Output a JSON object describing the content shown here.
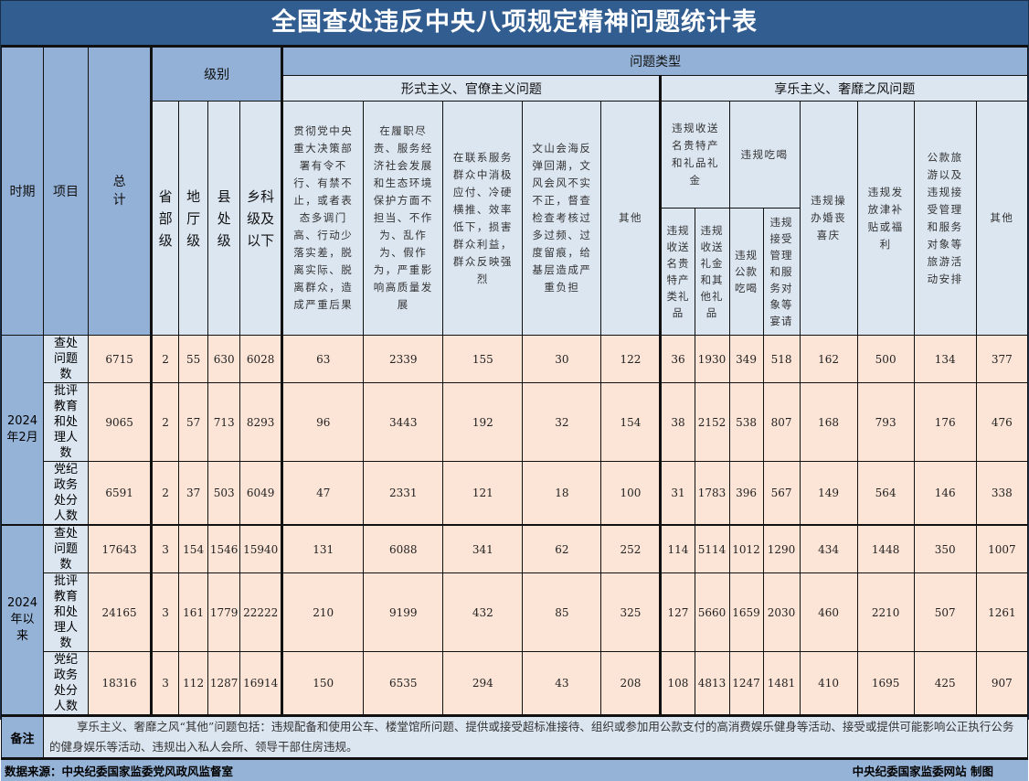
{
  "title": "全国查处违反中央八项规定精神问题统计表",
  "header": {
    "period": "时期",
    "item": "项目",
    "total": "总计",
    "level_group": "级别",
    "levels": [
      "省部级",
      "地厅级",
      "县处级",
      "乡科级及以下"
    ],
    "problem_type": "问题类型",
    "formalism_group": "形式主义、官僚主义问题",
    "formalism_cols": [
      "贯彻党中央重大决策部署有令不行、有禁不止，或者表态多调门高、行动少落实差，脱离实际、脱离群众，造成严重后果",
      "在履职尽责、服务经济社会发展和生态环境保护方面不担当、不作为、乱作为、假作为，严重影响高质量发展",
      "在联系服务群众中消极应付、冷硬横推、效率低下，损害群众利益，群众反映强烈",
      "文山会海反弹回潮，文风会风不实不正，督查检查考核过多过频、过度留痕，给基层造成严重负担",
      "其他"
    ],
    "hedonism_group": "享乐主义、奢靡之风问题",
    "gifts_group": "违规收送名贵特产和礼品礼金",
    "gifts_cols": [
      "违规收送名贵特产类礼品",
      "违规收送礼金和其他礼品"
    ],
    "dining_group": "违规吃喝",
    "dining_cols": [
      "违规公款吃喝",
      "违规接受管理和服务对象等宴请"
    ],
    "hedonism_cols": [
      "违规操办婚丧喜庆",
      "违规发放津补贴或福利",
      "公款旅游以及违规接受管理和服务对象等旅游活动安排",
      "其他"
    ]
  },
  "periods": [
    {
      "label": "2024年2月",
      "rows": [
        {
          "item": "查处问题数",
          "values": [
            "6715",
            "2",
            "55",
            "630",
            "6028",
            "63",
            "2339",
            "155",
            "30",
            "122",
            "36",
            "1930",
            "349",
            "518",
            "162",
            "500",
            "134",
            "377"
          ]
        },
        {
          "item": "批评教育和处理人数",
          "values": [
            "9065",
            "2",
            "57",
            "713",
            "8293",
            "96",
            "3443",
            "192",
            "32",
            "154",
            "38",
            "2152",
            "538",
            "807",
            "168",
            "793",
            "176",
            "476"
          ]
        },
        {
          "item": "党纪政务处分人数",
          "values": [
            "6591",
            "2",
            "37",
            "503",
            "6049",
            "47",
            "2331",
            "121",
            "18",
            "100",
            "31",
            "1783",
            "396",
            "567",
            "149",
            "564",
            "146",
            "338"
          ]
        }
      ]
    },
    {
      "label": "2024年以来",
      "rows": [
        {
          "item": "查处问题数",
          "values": [
            "17643",
            "3",
            "154",
            "1546",
            "15940",
            "131",
            "6088",
            "341",
            "62",
            "252",
            "114",
            "5114",
            "1012",
            "1290",
            "434",
            "1448",
            "350",
            "1007"
          ]
        },
        {
          "item": "批评教育和处理人数",
          "values": [
            "24165",
            "3",
            "161",
            "1779",
            "22222",
            "210",
            "9199",
            "432",
            "85",
            "325",
            "127",
            "5660",
            "1659",
            "2030",
            "460",
            "2210",
            "507",
            "1261"
          ]
        },
        {
          "item": "党纪政务处分人数",
          "values": [
            "18316",
            "3",
            "112",
            "1287",
            "16914",
            "150",
            "6535",
            "294",
            "43",
            "208",
            "108",
            "4813",
            "1247",
            "1481",
            "410",
            "1695",
            "425",
            "907"
          ]
        }
      ]
    }
  ],
  "notes": {
    "label": "备注",
    "text": "享乐主义、奢靡之风“其他”问题包括：违规配备和使用公车、楼堂馆所问题、提供或接受超标准接待、组织或参加用公款支付的高消费娱乐健身等活动、接受或提供可能影响公正执行公务的健身娱乐等活动、违规出入私人会所、领导干部住房违规。"
  },
  "footer": {
    "source": "数据来源：中央纪委国家监委党风政风监督室",
    "credit": "中央纪委国家监委网站 制图"
  },
  "colors": {
    "title_bg": "#315d91",
    "header_bg": "#93b1d6",
    "light_bg": "#dce6f1",
    "data_bg": "#fce4d6"
  }
}
